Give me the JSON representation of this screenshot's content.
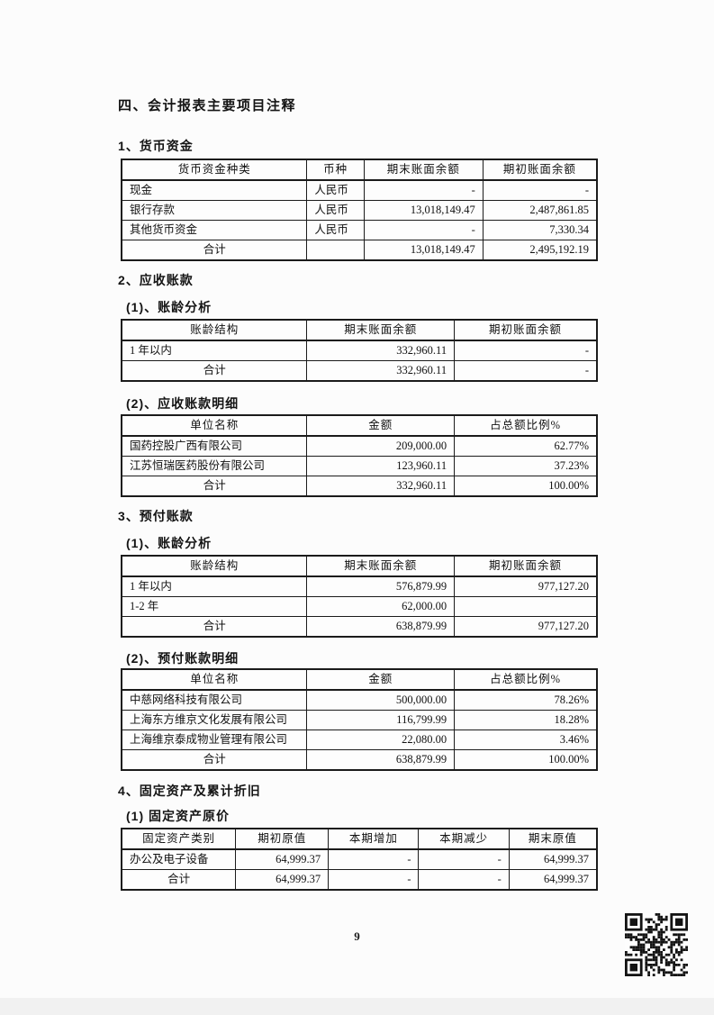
{
  "colors": {
    "paper": "#fcfcfc",
    "ink": "#111111",
    "table_border": "#1b1b1b"
  },
  "headings": {
    "main_title": "四、会计报表主要项目注释",
    "monetary_funds": "1、货币资金",
    "accounts_receivable": "2、应收账款",
    "ar_aging": "(1)、账龄分析",
    "ar_detail": "(2)、应收账款明细",
    "prepayments": "3、预付账款",
    "prepaid_aging": "(1)、账龄分析",
    "prepaid_detail": "(2)、预付账款明细",
    "fixed_assets": "4、固定资产及累计折旧",
    "fixed_assets_cost": "(1) 固定资产原价"
  },
  "tables": {
    "monetary_funds": {
      "headers": [
        "货币资金种类",
        "币种",
        "期末账面余额",
        "期初账面余额"
      ],
      "rows": [
        {
          "cells": [
            "现金",
            "人民币",
            "-",
            "-"
          ]
        },
        {
          "cells": [
            "银行存款",
            "人民币",
            "13,018,149.47",
            "2,487,861.85"
          ]
        },
        {
          "cells": [
            "其他货币资金",
            "人民币",
            "-",
            "7,330.34"
          ]
        },
        {
          "cells": [
            "合计",
            "",
            "13,018,149.47",
            "2,495,192.19"
          ],
          "total": true
        }
      ]
    },
    "ar_aging": {
      "headers": [
        "账龄结构",
        "期末账面余额",
        "期初账面余额"
      ],
      "rows": [
        {
          "cells": [
            "1 年以内",
            "332,960.11",
            "-"
          ]
        },
        {
          "cells": [
            "合计",
            "332,960.11",
            "-"
          ],
          "total": true
        }
      ]
    },
    "ar_detail": {
      "headers": [
        "单位名称",
        "金额",
        "占总额比例%"
      ],
      "rows": [
        {
          "cells": [
            "国药控股广西有限公司",
            "209,000.00",
            "62.77%"
          ]
        },
        {
          "cells": [
            "江苏恒瑞医药股份有限公司",
            "123,960.11",
            "37.23%"
          ]
        },
        {
          "cells": [
            "合计",
            "332,960.11",
            "100.00%"
          ],
          "total": true
        }
      ]
    },
    "prepaid_aging": {
      "headers": [
        "账龄结构",
        "期末账面余额",
        "期初账面余额"
      ],
      "rows": [
        {
          "cells": [
            "1 年以内",
            "576,879.99",
            "977,127.20"
          ]
        },
        {
          "cells": [
            "1-2 年",
            "62,000.00",
            ""
          ]
        },
        {
          "cells": [
            "合计",
            "638,879.99",
            "977,127.20"
          ],
          "total": true
        }
      ]
    },
    "prepaid_detail": {
      "headers": [
        "单位名称",
        "金额",
        "占总额比例%"
      ],
      "rows": [
        {
          "cells": [
            "中慈网络科技有限公司",
            "500,000.00",
            "78.26%"
          ]
        },
        {
          "cells": [
            "上海东方维京文化发展有限公司",
            "116,799.99",
            "18.28%"
          ]
        },
        {
          "cells": [
            "上海维京泰成物业管理有限公司",
            "22,080.00",
            "3.46%"
          ]
        },
        {
          "cells": [
            "合计",
            "638,879.99",
            "100.00%"
          ],
          "total": true
        }
      ]
    },
    "fixed_assets_cost": {
      "headers": [
        "固定资产类别",
        "期初原值",
        "本期增加",
        "本期减少",
        "期末原值"
      ],
      "rows": [
        {
          "cells": [
            "办公及电子设备",
            "64,999.37",
            "-",
            "-",
            "64,999.37"
          ]
        },
        {
          "cells": [
            "合计",
            "64,999.37",
            "-",
            "-",
            "64,999.37"
          ],
          "total": true
        }
      ]
    }
  },
  "footer": {
    "page_number": "9"
  },
  "icons": {
    "qr_code": "qr-code"
  }
}
